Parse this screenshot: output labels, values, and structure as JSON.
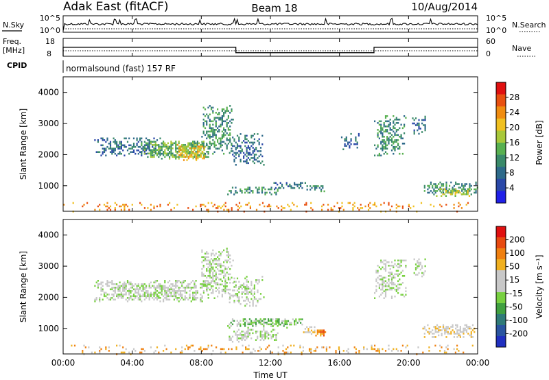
{
  "header": {
    "title": "Adak East (fitACF)",
    "beam": "Beam 18",
    "date": "10/Aug/2014"
  },
  "summary_panels": {
    "noise": {
      "left_label": "N.Sky",
      "right_label": "N.Search",
      "left_ticks": [
        "10^5",
        "10^0"
      ],
      "right_ticks": [
        "10^5",
        "10^0"
      ]
    },
    "freq": {
      "left_label_1": "Freq.",
      "left_label_2": "[MHz]",
      "right_label": "Nave",
      "left_ticks": [
        "18",
        "8"
      ],
      "right_ticks": [
        "60",
        "0"
      ]
    },
    "cpid": {
      "left_label": "CPID",
      "text": "normalsound (fast) 157 RF"
    }
  },
  "axes": {
    "xlabel": "Time UT",
    "xticks": [
      "00:00",
      "04:00",
      "08:00",
      "12:00",
      "16:00",
      "20:00",
      "00:00"
    ],
    "ylabel": "Slant Range [km]",
    "yticks": [
      "1000",
      "2000",
      "3000",
      "4000"
    ]
  },
  "colorbars": {
    "power": {
      "label": "Power [dB]",
      "ticks": [
        "28",
        "24",
        "20",
        "16",
        "12",
        "8",
        "4"
      ],
      "colors": [
        "#2020e8",
        "#2a48a8",
        "#2e6a8a",
        "#3a8a6a",
        "#58b050",
        "#a8c83a",
        "#f0c020",
        "#f08c10",
        "#e85010",
        "#e01010"
      ]
    },
    "velocity": {
      "label": "Velocity [m s⁻¹]",
      "ticks": [
        "200",
        "100",
        "50",
        "15",
        "-15",
        "-50",
        "-100",
        "-200"
      ],
      "colors": [
        "#2030c0",
        "#2a55a0",
        "#2f7a78",
        "#40a040",
        "#78d040",
        "#c8c8c8",
        "#c8c8c8",
        "#f0b020",
        "#f08010",
        "#e84a10",
        "#e01010"
      ]
    }
  },
  "chart_data": {
    "type": "heatmap",
    "x_range_hours": [
      0,
      24
    ],
    "y_range_km": [
      180,
      4500
    ],
    "noise_series": {
      "name": "N.Sky",
      "scale": "log",
      "baseline": 2.2,
      "spikes_hours": [
        1.5,
        3.0,
        3.3,
        4.2,
        7.9,
        9.9,
        10.1,
        11.3,
        15.2,
        19.0,
        21.3
      ]
    },
    "freq_series": {
      "name": "Freq.",
      "segments": [
        {
          "from_h": 0.0,
          "to_h": 10.0,
          "mhz": 13.0
        },
        {
          "from_h": 10.0,
          "to_h": 18.0,
          "mhz": 10.0
        },
        {
          "from_h": 18.0,
          "to_h": 24.0,
          "mhz": 13.0
        }
      ],
      "nave_dotted": 8
    },
    "power_clusters": [
      {
        "t0": 1.8,
        "t1": 5.8,
        "r0": 2000,
        "r1": 2600,
        "level": 2,
        "density": 0.5
      },
      {
        "t0": 4.5,
        "t1": 8.4,
        "r0": 1900,
        "r1": 2500,
        "level": 4,
        "density": 0.7
      },
      {
        "t0": 6.5,
        "t1": 8.2,
        "r0": 1850,
        "r1": 2350,
        "level": 6,
        "density": 0.7
      },
      {
        "t0": 8.0,
        "t1": 9.8,
        "r0": 2000,
        "r1": 3600,
        "level": 3,
        "density": 0.55
      },
      {
        "t0": 9.6,
        "t1": 11.6,
        "r0": 1700,
        "r1": 2700,
        "level": 2,
        "density": 0.45
      },
      {
        "t0": 9.5,
        "t1": 12.5,
        "r0": 750,
        "r1": 1000,
        "level": 3,
        "density": 0.6
      },
      {
        "t0": 12.0,
        "t1": 14.0,
        "r0": 900,
        "r1": 1150,
        "level": 2,
        "density": 0.5
      },
      {
        "t0": 14.0,
        "t1": 15.2,
        "r0": 850,
        "r1": 1050,
        "level": 3,
        "density": 0.6
      },
      {
        "t0": 16.0,
        "t1": 17.2,
        "r0": 2200,
        "r1": 2700,
        "level": 2,
        "density": 0.3
      },
      {
        "t0": 18.0,
        "t1": 19.8,
        "r0": 2000,
        "r1": 3300,
        "level": 3,
        "density": 0.45
      },
      {
        "t0": 20.2,
        "t1": 21.0,
        "r0": 2700,
        "r1": 3300,
        "level": 2,
        "density": 0.45
      },
      {
        "t0": 20.8,
        "t1": 24.0,
        "r0": 750,
        "r1": 1150,
        "level": 3,
        "density": 0.6
      },
      {
        "t0": 21.5,
        "t1": 23.5,
        "r0": 700,
        "r1": 950,
        "level": 5,
        "density": 0.6
      },
      {
        "t0": 0.0,
        "t1": 24.0,
        "r0": 200,
        "r1": 500,
        "level": 7,
        "density": 0.18
      }
    ],
    "velocity_clusters": [
      {
        "t0": 1.8,
        "t1": 8.4,
        "r0": 1900,
        "r1": 2600,
        "level": 5,
        "density": 0.7
      },
      {
        "t0": 8.0,
        "t1": 9.8,
        "r0": 2000,
        "r1": 3600,
        "level": 5,
        "density": 0.55
      },
      {
        "t0": 9.6,
        "t1": 11.6,
        "r0": 1700,
        "r1": 2700,
        "level": 5,
        "density": 0.45
      },
      {
        "t0": 9.5,
        "t1": 13.0,
        "r0": 1050,
        "r1": 1350,
        "level": 4,
        "density": 0.5
      },
      {
        "t0": 12.0,
        "t1": 13.8,
        "r0": 1100,
        "r1": 1350,
        "level": 4,
        "density": 0.6
      },
      {
        "t0": 9.5,
        "t1": 12.5,
        "r0": 600,
        "r1": 1000,
        "level": 5,
        "density": 0.55
      },
      {
        "t0": 13.8,
        "t1": 14.6,
        "r0": 850,
        "r1": 1100,
        "level": 6,
        "density": 0.5
      },
      {
        "t0": 14.6,
        "t1": 15.2,
        "r0": 800,
        "r1": 1050,
        "level": 8,
        "density": 0.8
      },
      {
        "t0": 18.0,
        "t1": 19.8,
        "r0": 2000,
        "r1": 3300,
        "level": 5,
        "density": 0.45
      },
      {
        "t0": 20.2,
        "t1": 21.0,
        "r0": 2700,
        "r1": 3300,
        "level": 5,
        "density": 0.45
      },
      {
        "t0": 20.8,
        "t1": 24.0,
        "r0": 750,
        "r1": 1150,
        "level": 6,
        "density": 0.6
      },
      {
        "t0": 0.0,
        "t1": 24.0,
        "r0": 200,
        "r1": 500,
        "level": 7,
        "density": 0.18
      }
    ]
  }
}
